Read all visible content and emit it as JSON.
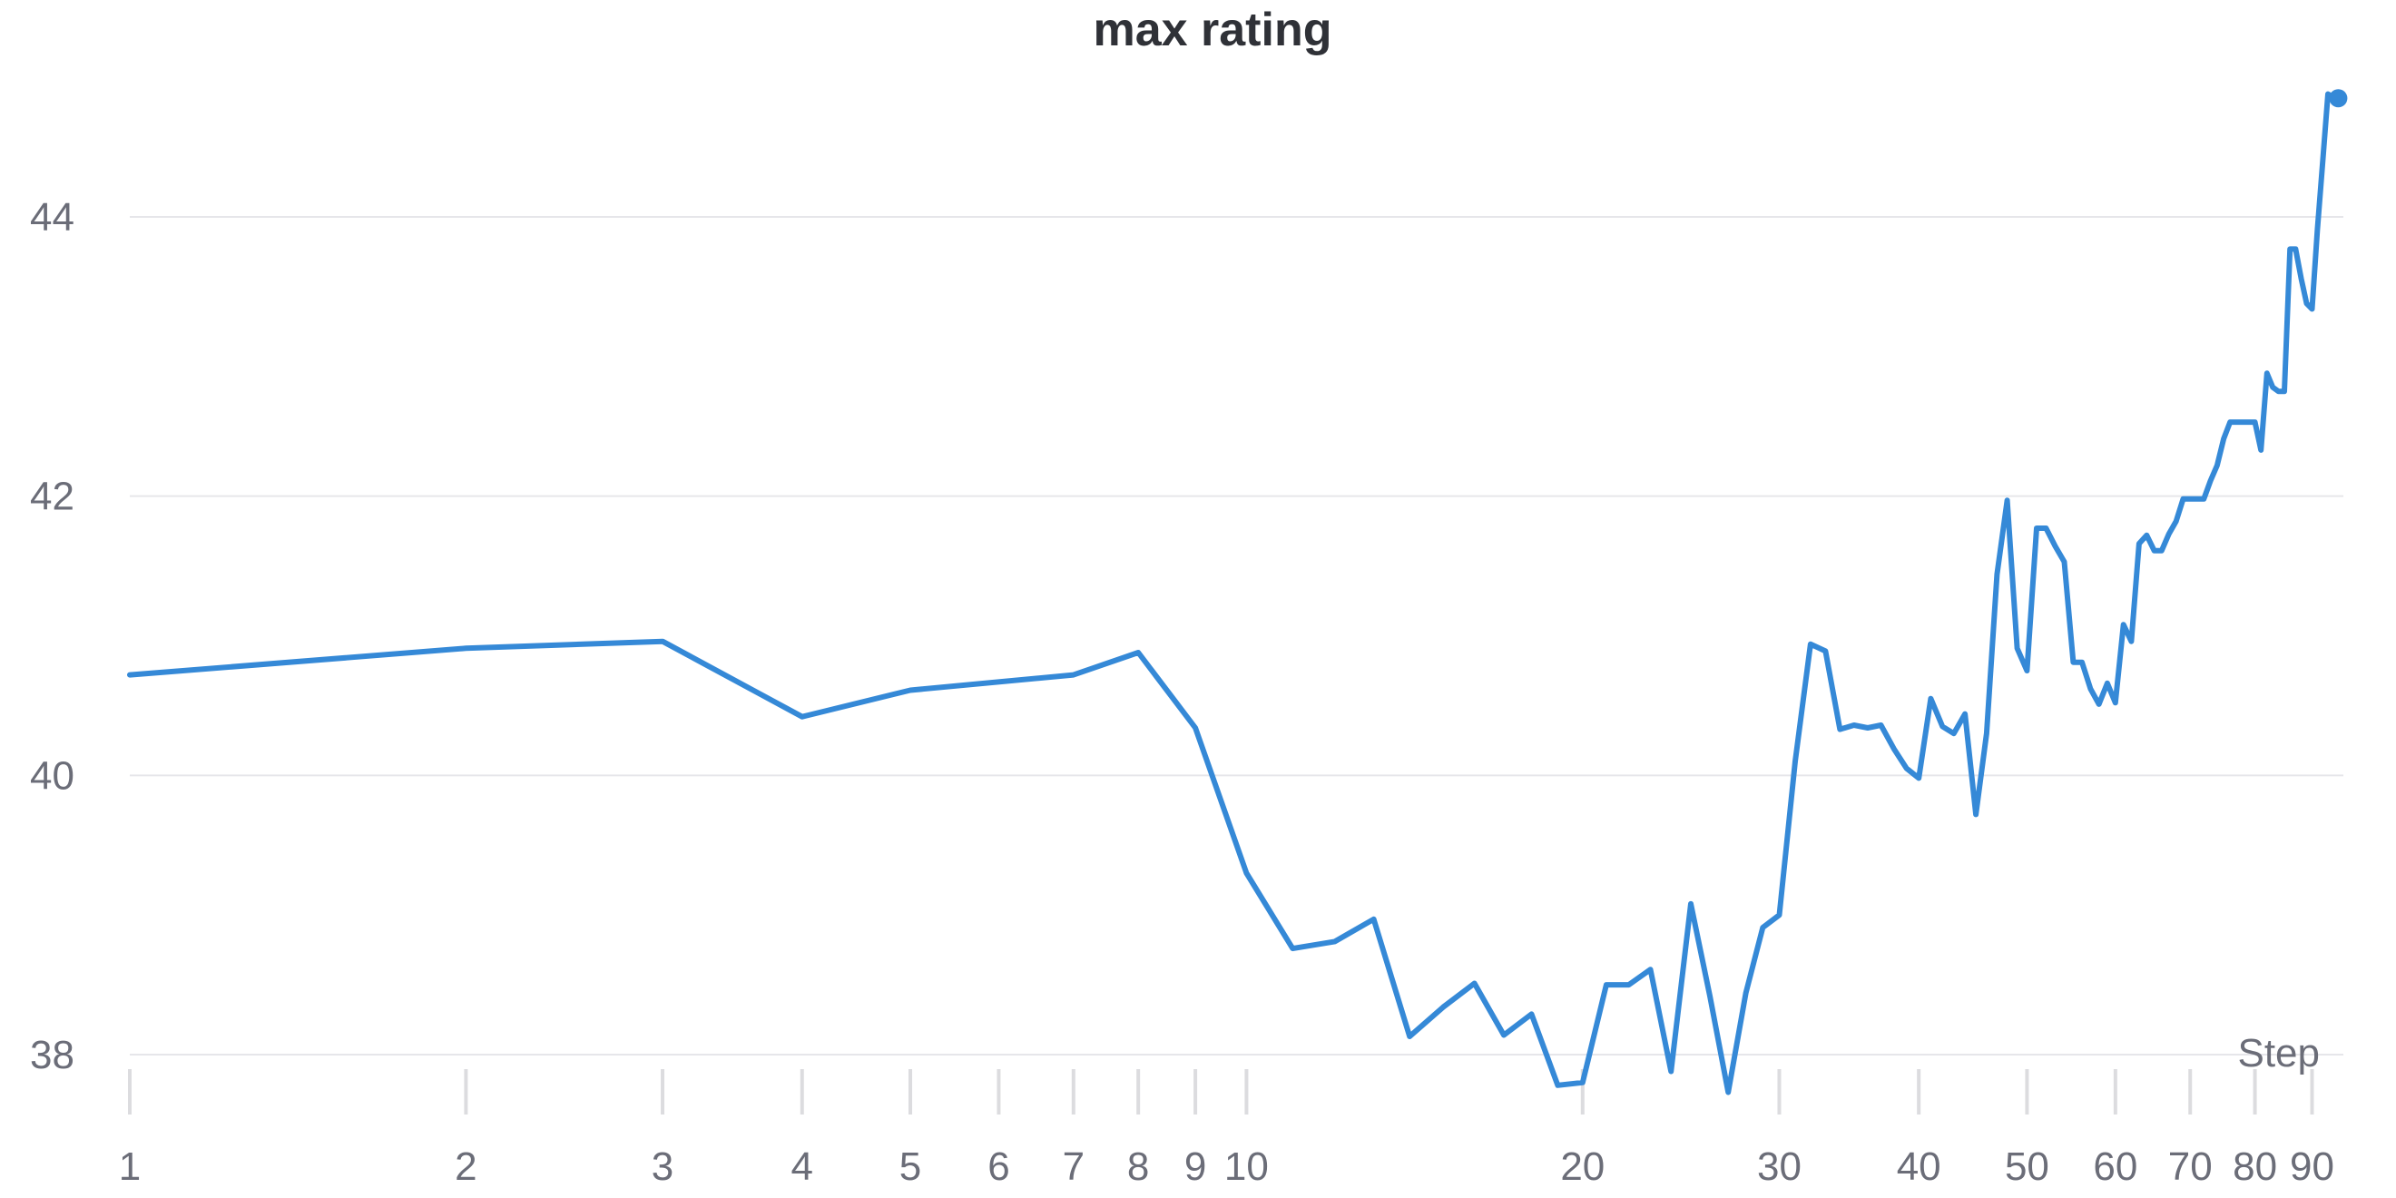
{
  "chart_data": {
    "type": "line",
    "title": "max rating",
    "xlabel": "Step",
    "ylabel": "",
    "xscale": "log",
    "xlim": [
      1,
      96
    ],
    "ylim": [
      37.9,
      44.3
    ],
    "grid": "horizontal",
    "legend": "none",
    "y_ticks": [
      38,
      40,
      42,
      44
    ],
    "x_ticks": [
      1,
      2,
      3,
      4,
      5,
      6,
      7,
      8,
      9,
      10,
      20,
      30,
      40,
      50,
      60,
      70,
      80,
      90
    ],
    "series": [
      {
        "color": "#3589d7",
        "x": [
          1,
          2,
          3,
          4,
          5,
          7,
          8,
          9,
          10,
          11,
          12,
          13,
          14,
          15,
          16,
          17,
          18,
          19,
          20,
          21,
          22,
          23,
          24,
          25,
          26,
          27,
          28,
          29,
          30,
          31,
          32,
          33,
          34,
          35,
          36,
          37,
          38,
          39,
          40,
          41,
          42,
          43,
          44,
          45,
          46,
          47,
          48,
          49,
          50,
          51,
          52,
          53,
          54,
          55,
          56,
          57,
          58,
          59,
          60,
          61,
          62,
          63,
          64,
          65,
          66,
          67,
          68,
          69,
          70,
          71,
          72,
          73,
          74,
          75,
          76,
          77,
          78,
          79,
          80,
          81,
          82,
          83,
          84,
          85,
          86,
          87,
          88,
          89,
          90,
          91,
          92,
          93,
          94,
          95
        ],
        "y": [
          40.72,
          40.91,
          40.96,
          40.42,
          40.61,
          40.72,
          40.88,
          40.34,
          39.3,
          38.76,
          38.81,
          38.97,
          38.13,
          38.34,
          38.51,
          38.14,
          38.29,
          37.78,
          37.8,
          38.5,
          38.5,
          38.61,
          37.88,
          39.08,
          38.42,
          37.73,
          38.44,
          38.91,
          39.0,
          40.1,
          40.94,
          40.89,
          40.33,
          40.36,
          40.34,
          40.36,
          40.19,
          40.05,
          39.98,
          40.55,
          40.35,
          40.3,
          40.44,
          39.72,
          40.3,
          41.44,
          41.97,
          40.91,
          40.75,
          41.77,
          41.77,
          41.64,
          41.53,
          40.81,
          40.81,
          40.62,
          40.51,
          40.66,
          40.52,
          41.08,
          40.96,
          41.66,
          41.72,
          41.61,
          41.61,
          41.73,
          41.82,
          41.98,
          41.98,
          41.98,
          41.98,
          42.11,
          42.22,
          42.41,
          42.53,
          42.53,
          42.53,
          42.53,
          42.53,
          42.33,
          42.88,
          42.78,
          42.75,
          42.75,
          43.77,
          43.77,
          43.56,
          43.38,
          43.34,
          43.91,
          44.4,
          44.88,
          44.86,
          44.85
        ]
      }
    ]
  }
}
